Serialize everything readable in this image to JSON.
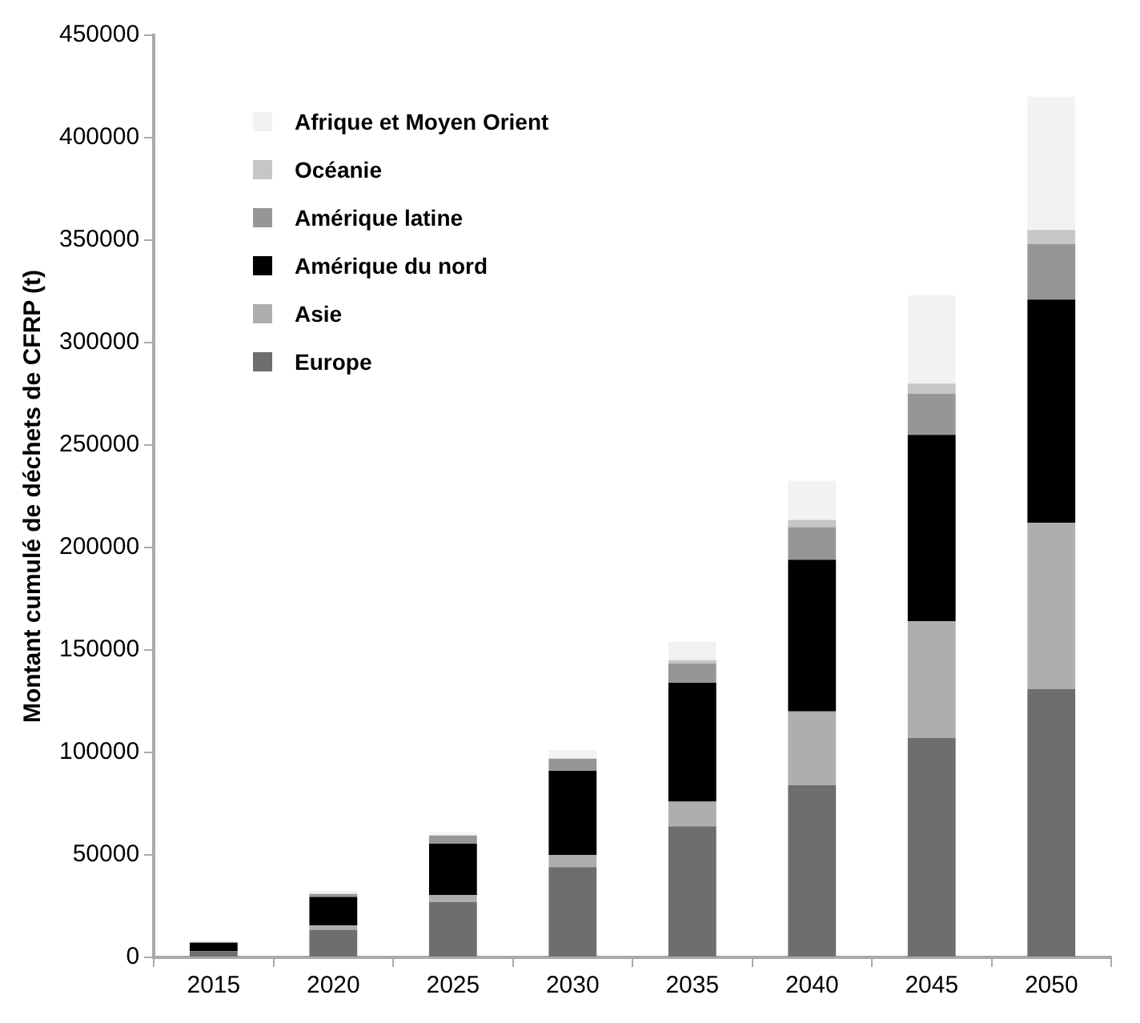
{
  "chart_data": {
    "type": "bar",
    "stacked": true,
    "ylabel": "Montant cumulé de déchets de CFRP (t)",
    "categories": [
      "2015",
      "2020",
      "2025",
      "2030",
      "2035",
      "2040",
      "2045",
      "2050"
    ],
    "ylim": [
      0,
      450000
    ],
    "yticks": [
      0,
      50000,
      100000,
      150000,
      200000,
      250000,
      300000,
      350000,
      400000,
      450000
    ],
    "grid": false,
    "legend": "top left",
    "series": [
      {
        "name": "Europe",
        "color": "#6e6e6e",
        "values": [
          3000,
          13500,
          27000,
          44000,
          64000,
          84000,
          107000,
          131000
        ]
      },
      {
        "name": "Asie",
        "color": "#aeaeae",
        "values": [
          null,
          2000,
          3500,
          6000,
          12000,
          36000,
          57000,
          81000
        ]
      },
      {
        "name": "Amérique du nord",
        "color": "#000000",
        "values": [
          4000,
          14000,
          25000,
          41000,
          58000,
          74000,
          91000,
          109000
        ]
      },
      {
        "name": "Amérique latine",
        "color": "#969696",
        "values": [
          500,
          1500,
          4000,
          6000,
          9500,
          16000,
          20000,
          27000
        ]
      },
      {
        "name": "Océanie",
        "color": "#c6c6c6",
        "values": [
          null,
          null,
          null,
          null,
          1500,
          3500,
          5000,
          7000
        ]
      },
      {
        "name": "Afrique et Moyen Orient",
        "color": "#f2f2f2",
        "values": [
          300,
          1500,
          1500,
          4000,
          9000,
          19000,
          43000,
          65000
        ]
      }
    ]
  }
}
